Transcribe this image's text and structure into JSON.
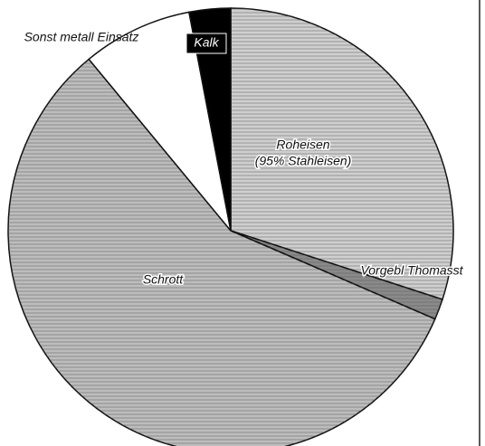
{
  "chart_data": {
    "type": "pie",
    "labels": [
      [
        "Roheisen",
        "(95% Stahleisen)"
      ],
      [
        "Vorgebl Thomasst"
      ],
      [
        "Schrott"
      ],
      [
        "Sonst metall Einsatz"
      ],
      [
        "Kalk"
      ]
    ],
    "values": [
      30,
      1.5,
      57.5,
      8,
      3
    ],
    "colors": [
      "#cfcfcf",
      "#8a8a8a",
      "#bdbdbd",
      "#ffffff",
      "#000000"
    ]
  }
}
